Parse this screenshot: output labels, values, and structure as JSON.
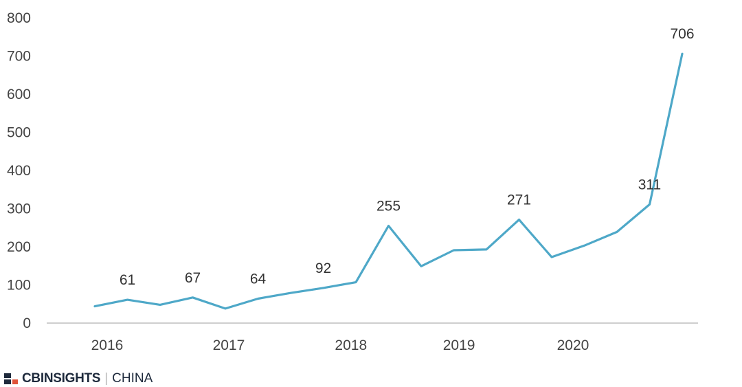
{
  "chart_data": {
    "type": "line",
    "title": "",
    "xlabel": "",
    "ylabel": "",
    "ylim": [
      0,
      800
    ],
    "yticks": [
      "0",
      "100",
      "200",
      "300",
      "400",
      "500",
      "600",
      "700",
      "800"
    ],
    "xticks": [
      "2016",
      "2017",
      "2018",
      "2019",
      "2020"
    ],
    "grid": false,
    "line_color": "#4ea8c8",
    "series": [
      {
        "values": [
          44,
          61,
          48,
          67,
          38,
          64,
          79,
          92,
          107,
          255,
          149,
          191,
          193,
          271,
          173,
          203,
          239,
          311,
          706
        ],
        "labels": [
          "",
          "61",
          "",
          "67",
          "",
          "64",
          "",
          "92",
          "",
          "255",
          "",
          "",
          "",
          "271",
          "",
          "",
          "",
          "311",
          "706"
        ]
      }
    ]
  },
  "brand": {
    "name": "CBINSIGHTS",
    "separator": "|",
    "region": "CHINA",
    "colors": [
      "#1e2a3c",
      "#e0533a"
    ]
  }
}
